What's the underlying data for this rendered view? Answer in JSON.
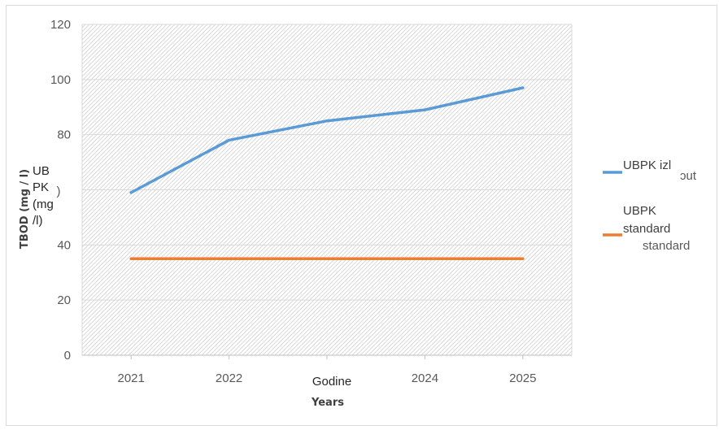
{
  "chart_data": {
    "type": "line",
    "categories": [
      "2021",
      "2022",
      "",
      "2024",
      "2025"
    ],
    "series": [
      {
        "name": "UBPK izl",
        "color": "#5b9bd5",
        "values": [
          59,
          78,
          85,
          89,
          97
        ]
      },
      {
        "name": "UBPK standard",
        "color": "#ed7d31",
        "values": [
          35,
          35,
          35,
          35,
          35
        ]
      }
    ],
    "yticks": [
      "0",
      "20",
      "40",
      "",
      "80",
      "100",
      "120"
    ],
    "ylim": [
      0,
      120
    ],
    "ylabel": "TBOD (mg / l)",
    "ylabel_overlay": [
      "UB",
      "PK",
      "(mg",
      "/l)"
    ],
    "xlabel": "Years",
    "xlabel_overlay": "Godine",
    "ytick_fragment": ")",
    "legend_fragments": [
      "ɔut",
      "standard"
    ],
    "legend_position": "right",
    "grid": true,
    "background_pattern": "diagonal-hatch"
  }
}
